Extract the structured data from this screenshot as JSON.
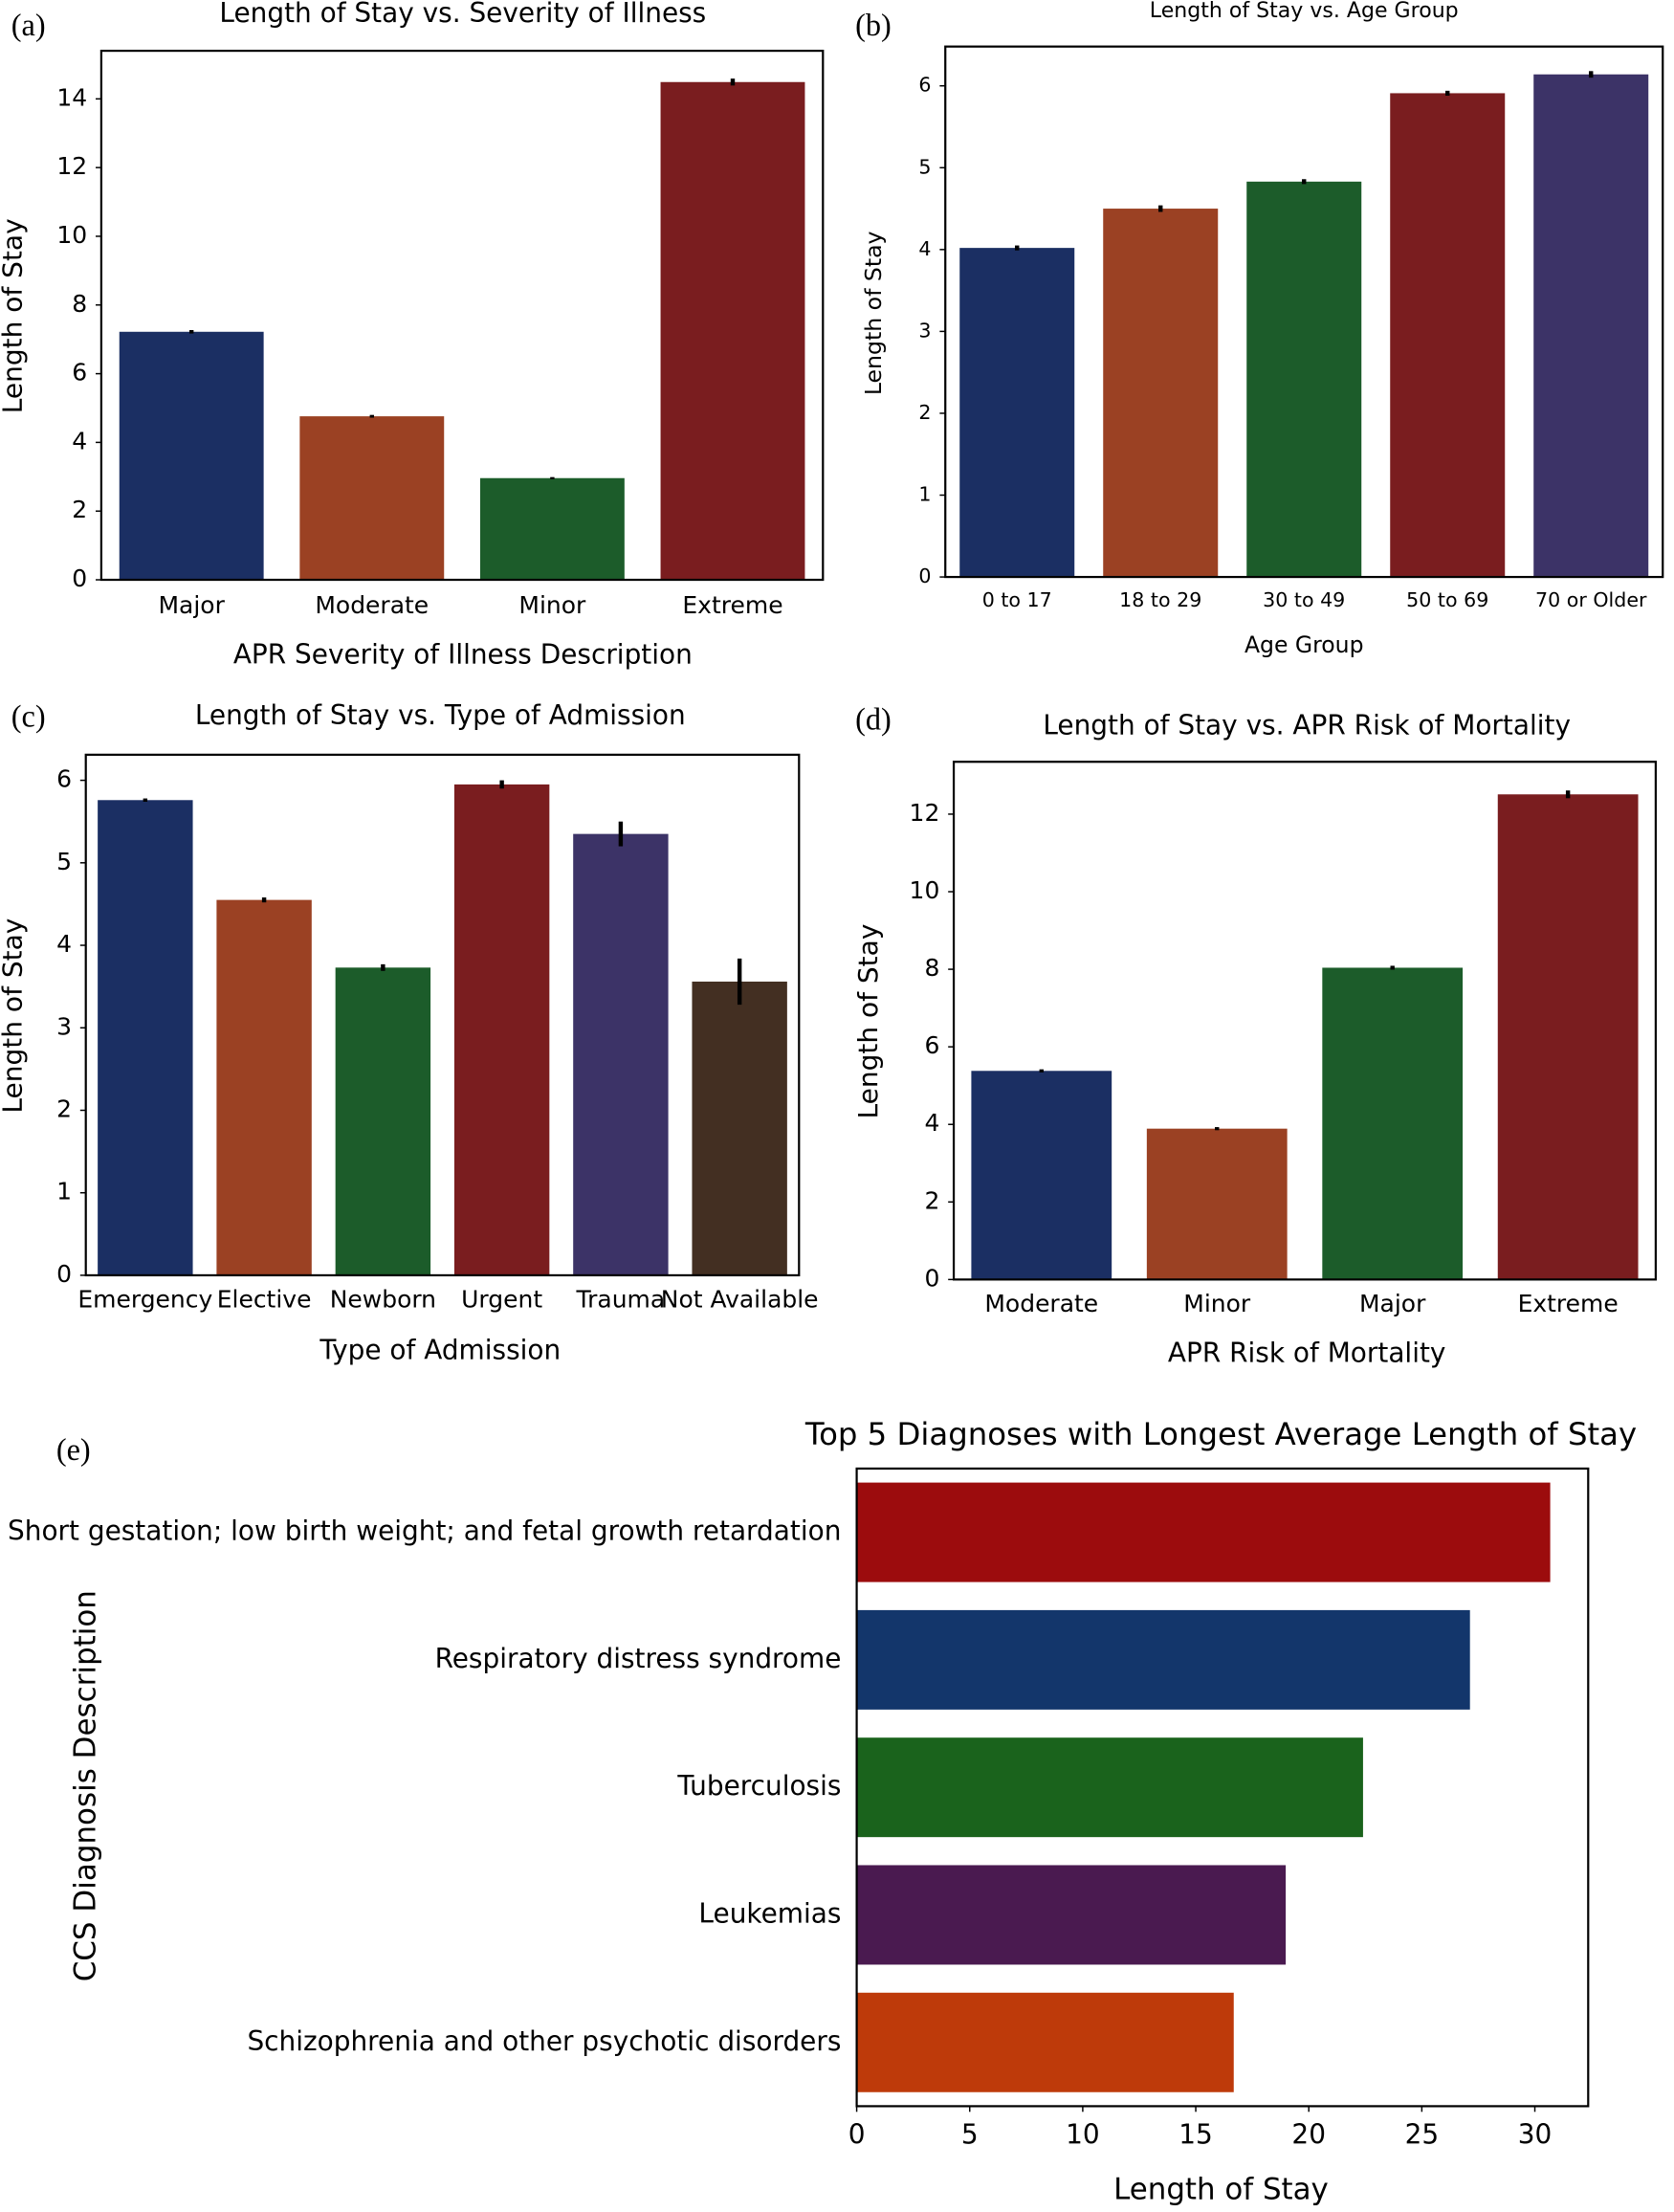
{
  "chart_data": [
    {
      "type": "bar",
      "label": "(a)",
      "title": "Length of Stay vs. Severity of Illness",
      "x_label": "APR Severity of Illness Description",
      "y_label": "Length of Stay",
      "categories": [
        "Major",
        "Moderate",
        "Minor",
        "Extreme"
      ],
      "values": [
        7.22,
        4.76,
        2.96,
        14.49
      ],
      "errors": [
        0.05,
        0.04,
        0.03,
        0.1
      ],
      "colors": [
        "#1b2f63",
        "#9b4123",
        "#1c5c2a",
        "#7a1d1f"
      ],
      "ylim": [
        0,
        15.4
      ],
      "yticks": [
        0,
        2,
        4,
        6,
        8,
        10,
        12,
        14
      ]
    },
    {
      "type": "bar",
      "label": "(b)",
      "title": "Length of Stay vs. Age Group",
      "x_label": "Age Group",
      "y_label": "Length of Stay",
      "categories": [
        "0 to 17",
        "18 to 29",
        "30 to 49",
        "50 to 69",
        "70 or Older"
      ],
      "values": [
        4.02,
        4.5,
        4.83,
        5.91,
        6.14
      ],
      "errors": [
        0.03,
        0.04,
        0.03,
        0.03,
        0.04
      ],
      "colors": [
        "#1b2f63",
        "#9b4123",
        "#1c5c2a",
        "#7a1d1f",
        "#3c3367"
      ],
      "ylim": [
        0,
        6.48
      ],
      "yticks": [
        0,
        1,
        2,
        3,
        4,
        5,
        6
      ]
    },
    {
      "type": "bar",
      "label": "(c)",
      "title": "Length of Stay vs. Type of Admission",
      "x_label": "Type of Admission",
      "y_label": "Length of Stay",
      "categories": [
        "Emergency",
        "Elective",
        "Newborn",
        "Urgent",
        "Trauma",
        "Not Available"
      ],
      "values": [
        5.76,
        4.55,
        3.73,
        5.95,
        5.35,
        3.56
      ],
      "errors": [
        0.02,
        0.03,
        0.04,
        0.05,
        0.15,
        0.28
      ],
      "colors": [
        "#1b2f63",
        "#9b4123",
        "#1c5c2a",
        "#7a1d1f",
        "#3c3367",
        "#432f22"
      ],
      "ylim": [
        0,
        6.31
      ],
      "yticks": [
        0,
        1,
        2,
        3,
        4,
        5,
        6
      ]
    },
    {
      "type": "bar",
      "label": "(d)",
      "title": "Length of Stay vs. APR Risk of Mortality",
      "x_label": "APR Risk of Mortality",
      "y_label": "Length of Stay",
      "categories": [
        "Moderate",
        "Minor",
        "Major",
        "Extreme"
      ],
      "values": [
        5.38,
        3.89,
        8.04,
        12.51
      ],
      "errors": [
        0.04,
        0.04,
        0.05,
        0.1
      ],
      "colors": [
        "#1b2f63",
        "#9b4123",
        "#1c5c2a",
        "#7a1d1f"
      ],
      "ylim": [
        0,
        13.35
      ],
      "yticks": [
        0,
        2,
        4,
        6,
        8,
        10,
        12
      ]
    },
    {
      "type": "hbar",
      "label": "(e)",
      "title": "Top 5 Diagnoses with Longest Average Length of Stay",
      "x_label": "Length of Stay",
      "y_label": "CCS Diagnosis Description",
      "categories": [
        "Short gestation; low birth weight; and fetal growth retardation",
        "Respiratory distress syndrome",
        "Tuberculosis",
        "Leukemias",
        "Schizophrenia and other psychotic disorders"
      ],
      "values": [
        30.68,
        27.13,
        22.4,
        18.98,
        16.68
      ],
      "colors": [
        "#9c0c0d",
        "#13366b",
        "#1a631c",
        "#4a1a50",
        "#be3a0a"
      ],
      "xlim": [
        0,
        32.36
      ],
      "xticks": [
        0,
        5,
        10,
        15,
        20,
        25,
        30
      ]
    }
  ]
}
